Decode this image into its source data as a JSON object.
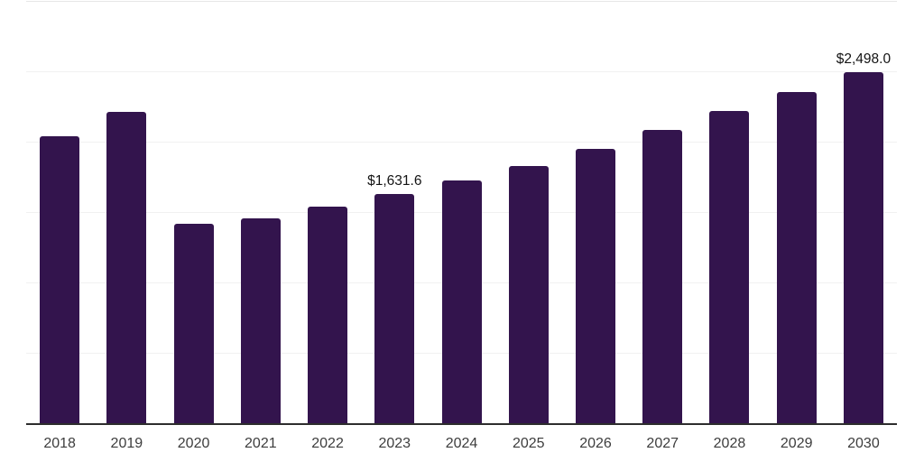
{
  "colors": {
    "background": "#ffffff",
    "bar": "#33144d",
    "gridline": "#f1f1f1",
    "gridline_top": "#e7e7e7",
    "axis_line": "#2d2d2d",
    "tick_label": "#3d3d3d",
    "value_label": "#141414"
  },
  "chart_data": {
    "type": "bar",
    "title": "",
    "xlabel": "",
    "ylabel": "",
    "categories": [
      "2018",
      "2019",
      "2020",
      "2021",
      "2022",
      "2023",
      "2024",
      "2025",
      "2026",
      "2027",
      "2028",
      "2029",
      "2030"
    ],
    "values": [
      2045,
      2218,
      1423,
      1462,
      1548,
      1631.6,
      1731,
      1833,
      1955,
      2090,
      2224,
      2359,
      2498
    ],
    "value_labels": [
      "",
      "",
      "",
      "",
      "",
      "$1,631.6",
      "",
      "",
      "",
      "",
      "",
      "",
      "$2,498.0"
    ],
    "ylim": [
      0,
      3000
    ],
    "gridline_step": 500,
    "grid": "horizontal",
    "legend": "none",
    "y_axis_tick_labels": "none"
  }
}
